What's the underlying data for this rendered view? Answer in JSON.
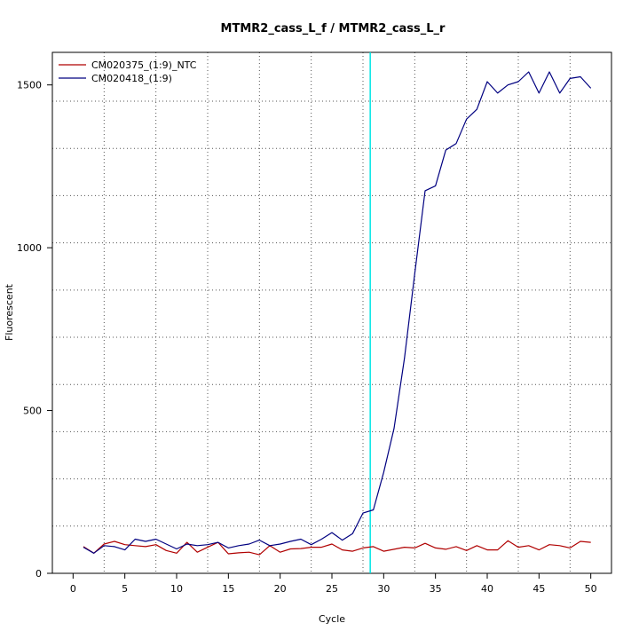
{
  "chart_data": {
    "type": "line",
    "title": "MTMR2_cass_L_f / MTMR2_cass_L_r",
    "xlabel": "Cycle",
    "ylabel": "Fluorescent",
    "xlim": [
      -2,
      52
    ],
    "ylim": [
      0,
      1600
    ],
    "x_ticks": [
      0,
      5,
      10,
      15,
      20,
      25,
      30,
      35,
      40,
      45,
      50
    ],
    "y_ticks": [
      0,
      500,
      1000,
      1500
    ],
    "x_grid": [
      3,
      8,
      13,
      18,
      23,
      28,
      33,
      38,
      43,
      48
    ],
    "y_grid": [
      0,
      145,
      290,
      435,
      580,
      725,
      870,
      1015,
      1160,
      1305,
      1450
    ],
    "grid": true,
    "legend_position": "top-left",
    "threshold_line": {
      "x": 28.7,
      "color": "#00e5e5"
    },
    "colors": {
      "NTC": "#b00000",
      "sample": "#000080"
    },
    "x": [
      1,
      2,
      3,
      4,
      5,
      6,
      7,
      8,
      9,
      10,
      11,
      12,
      13,
      14,
      15,
      16,
      17,
      18,
      19,
      20,
      21,
      22,
      23,
      24,
      25,
      26,
      27,
      28,
      29,
      30,
      31,
      32,
      33,
      34,
      35,
      36,
      37,
      38,
      39,
      40,
      41,
      42,
      43,
      44,
      45,
      46,
      47,
      48,
      49,
      50
    ],
    "series": [
      {
        "name": "CM020375_(1:9)_NTC",
        "color": "#b00000",
        "values": [
          82,
          62,
          90,
          98,
          88,
          85,
          82,
          88,
          70,
          62,
          95,
          65,
          80,
          95,
          60,
          63,
          65,
          57,
          85,
          65,
          75,
          76,
          80,
          80,
          90,
          72,
          68,
          78,
          82,
          68,
          74,
          80,
          78,
          92,
          78,
          74,
          82,
          70,
          85,
          72,
          72,
          100,
          80,
          85,
          72,
          88,
          85,
          78,
          98,
          95
        ]
      },
      {
        "name": "CM020418_(1:9)",
        "color": "#000080",
        "values": [
          80,
          62,
          85,
          82,
          72,
          105,
          98,
          105,
          90,
          75,
          90,
          85,
          88,
          95,
          78,
          85,
          90,
          102,
          85,
          90,
          98,
          105,
          88,
          105,
          125,
          102,
          122,
          185,
          195,
          310,
          445,
          660,
          920,
          1175,
          1190,
          1300,
          1320,
          1395,
          1425,
          1510,
          1475,
          1500,
          1510,
          1540,
          1475,
          1540,
          1475,
          1520,
          1525,
          1490
        ]
      }
    ]
  }
}
